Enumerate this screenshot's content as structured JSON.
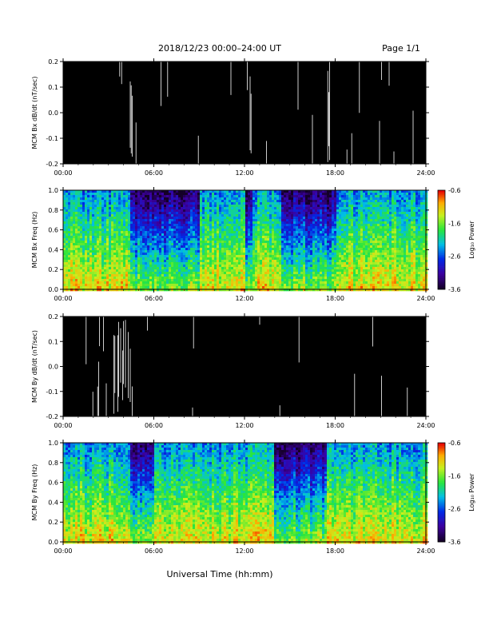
{
  "header": {
    "title": "2018/12/23  00:00–24:00 UT",
    "page": "Page 1/1"
  },
  "footer": {
    "xlabel": "Universal Time (hh:mm)"
  },
  "colors": {
    "plot_background": "#000000",
    "trace": "#ffffff",
    "page": "#ffffff"
  },
  "chart_data": [
    {
      "type": "line",
      "name": "bx-dbdt",
      "ylabel": "MCM Bx dB/dt (nT/sec)",
      "ylim": [
        -0.2,
        0.2
      ],
      "yticks": [
        "0.2",
        "0.1",
        "0.0",
        "-0.1",
        "-0.2"
      ],
      "xlim": [
        "00:00",
        "24:00"
      ],
      "xticks": [
        "00:00",
        "06:00",
        "12:00",
        "18:00",
        "24:00"
      ],
      "saturated": true,
      "quiet_intervals_hours": [
        [
          4.2,
          4.6
        ],
        [
          12.3,
          12.6
        ],
        [
          17.4,
          17.9
        ]
      ]
    },
    {
      "type": "heatmap",
      "name": "bx-spectrogram",
      "ylabel": "MCM Bx Freq (Hz)",
      "ylim": [
        0.0,
        1.0
      ],
      "yticks": [
        "1.0",
        "0.8",
        "0.6",
        "0.4",
        "0.2",
        "0.0"
      ],
      "xlim": [
        "00:00",
        "24:00"
      ],
      "xticks": [
        "00:00",
        "06:00",
        "12:00",
        "18:00",
        "24:00"
      ],
      "colorbar": {
        "label": "Log₁₀ Power",
        "range": [
          -3.6,
          -0.6
        ],
        "ticks": [
          "-0.6",
          "-1.6",
          "-2.6",
          "-3.6"
        ]
      },
      "low_power_bands_hours": [
        [
          4.5,
          9.0
        ],
        [
          12.0,
          12.5
        ],
        [
          14.5,
          18.0
        ]
      ]
    },
    {
      "type": "line",
      "name": "by-dbdt",
      "ylabel": "MCM By dB/dt (nT/sec)",
      "ylim": [
        -0.2,
        0.2
      ],
      "yticks": [
        "0.2",
        "0.1",
        "0.0",
        "-0.1",
        "-0.2"
      ],
      "xlim": [
        "00:00",
        "24:00"
      ],
      "xticks": [
        "00:00",
        "06:00",
        "12:00",
        "18:00",
        "24:00"
      ],
      "saturated": true,
      "quiet_intervals_hours": [
        [
          3.2,
          4.5
        ]
      ]
    },
    {
      "type": "heatmap",
      "name": "by-spectrogram",
      "ylabel": "MCM By Freq (Hz)",
      "ylim": [
        0.0,
        1.0
      ],
      "yticks": [
        "1.0",
        "0.8",
        "0.6",
        "0.4",
        "0.2",
        "0.0"
      ],
      "xlim": [
        "00:00",
        "24:00"
      ],
      "xticks": [
        "00:00",
        "06:00",
        "12:00",
        "18:00",
        "24:00"
      ],
      "colorbar": {
        "label": "Log₁₀ Power",
        "range": [
          -3.6,
          -0.6
        ],
        "ticks": [
          "-0.6",
          "-1.6",
          "-2.6",
          "-3.6"
        ]
      },
      "low_power_bands_hours": [
        [
          4.5,
          6.0
        ],
        [
          14.0,
          17.5
        ]
      ]
    }
  ]
}
